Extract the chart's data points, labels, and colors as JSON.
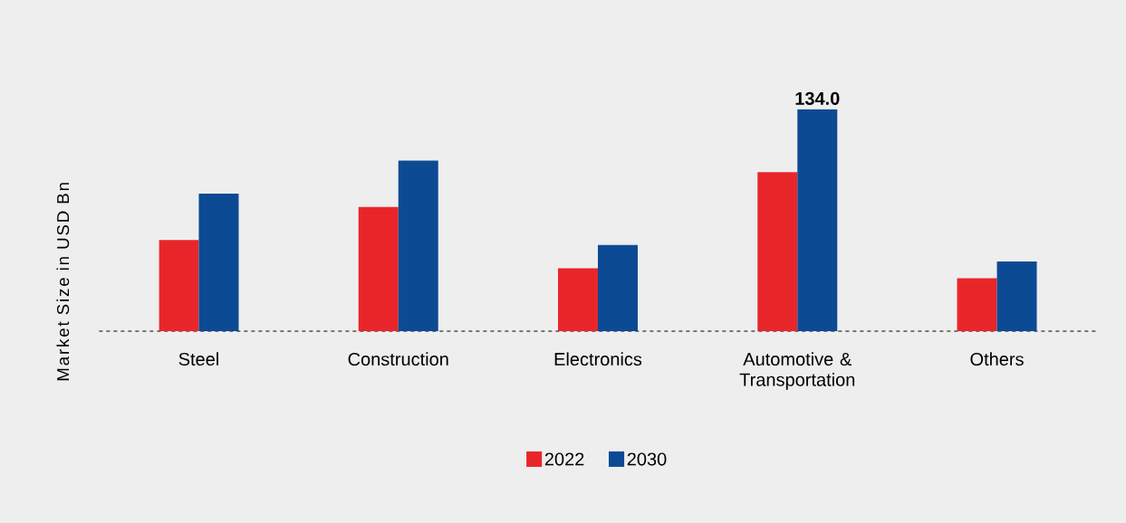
{
  "chart_data": {
    "type": "bar",
    "ylabel": "Market Size in USD Bn",
    "categories": [
      "Steel",
      "Construction",
      "Electronics",
      "Automotive & Transportation",
      "Others"
    ],
    "series": [
      {
        "name": "2022",
        "color": "#e8262a",
        "values": [
          55,
          75,
          38,
          96,
          32
        ]
      },
      {
        "name": "2030",
        "color": "#0d4a94",
        "values": [
          83,
          103,
          52,
          134,
          42
        ],
        "value_labels": [
          null,
          null,
          null,
          "134.0",
          null
        ]
      }
    ],
    "legend": "bottom"
  }
}
